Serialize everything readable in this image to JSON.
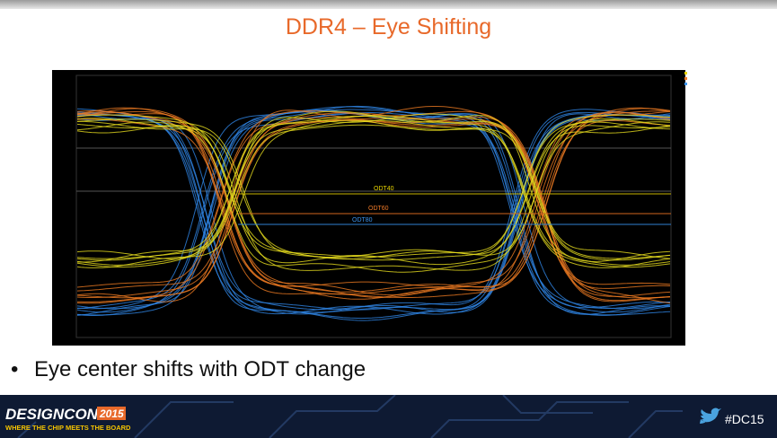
{
  "header": {
    "title": "DDR4 – Eye Shifting"
  },
  "figure": {
    "annotations": [
      "ODT40",
      "ODT60",
      "ODT80"
    ]
  },
  "bullets": [
    "Eye center shifts with ODT change"
  ],
  "footer": {
    "logo": "DESIGNCON",
    "year": "2015",
    "tagline": "WHERE THE CHIP MEETS THE BOARD",
    "hashtag": "#DC15"
  }
}
